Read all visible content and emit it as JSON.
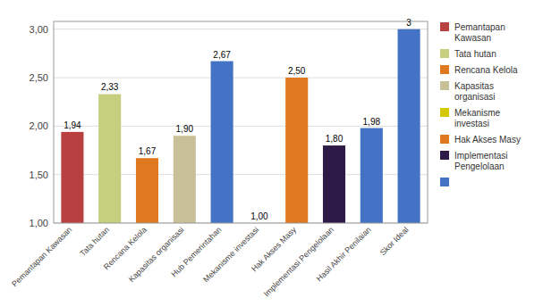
{
  "chart_data": {
    "type": "bar",
    "categories": [
      "Pemantapan Kawasan",
      "Tata hutan",
      "Rencana Kelola",
      "Kapasitas organisasi",
      "Hub Pemerintahan",
      "Mekanisme investasi",
      "Hak Akses Masy",
      "Implementasi Pengelolaan",
      "Hasil Akhir Penilaian",
      "Skor Ideal"
    ],
    "values": [
      1.94,
      2.33,
      1.67,
      1.9,
      2.67,
      1.0,
      2.5,
      1.8,
      1.98,
      3.0
    ],
    "value_labels": [
      "1,94",
      "2,33",
      "1,67",
      "1,90",
      "2,67",
      "1,00",
      "2,50",
      "1,80",
      "1,98",
      "3"
    ],
    "colors": [
      "#B94040",
      "#C6CF7E",
      "#E07820",
      "#C8C098",
      "#4472C4",
      "#D4C800",
      "#E07820",
      "#2E1A47",
      "#4472C4",
      "#4472C4"
    ],
    "ylim": [
      1.0,
      3.08
    ],
    "yticks": [
      {
        "value": 1.0,
        "label": "1,00"
      },
      {
        "value": 1.5,
        "label": "1,50"
      },
      {
        "value": 2.0,
        "label": "2,00"
      },
      {
        "value": 2.5,
        "label": "2,50"
      },
      {
        "value": 3.0,
        "label": "3,00"
      }
    ],
    "grid": true,
    "data_labels": true,
    "legend": "right",
    "legend_entries": [
      {
        "label": "Pemantapan\nKawasan",
        "color": "#B94040"
      },
      {
        "label": "Tata hutan",
        "color": "#C6CF7E"
      },
      {
        "label": "Rencana Kelola",
        "color": "#E07820"
      },
      {
        "label": "Kapasitas\norganisasi",
        "color": "#C8C098"
      },
      {
        "label": "Mekanisme\ninvestasi",
        "color": "#D4C800"
      },
      {
        "label": "Hak Akses Masy",
        "color": "#E07820"
      },
      {
        "label": "Implementasi\nPengelolaan",
        "color": "#2E1A47"
      },
      {
        "label": " ",
        "color": "#4472C4"
      }
    ]
  }
}
